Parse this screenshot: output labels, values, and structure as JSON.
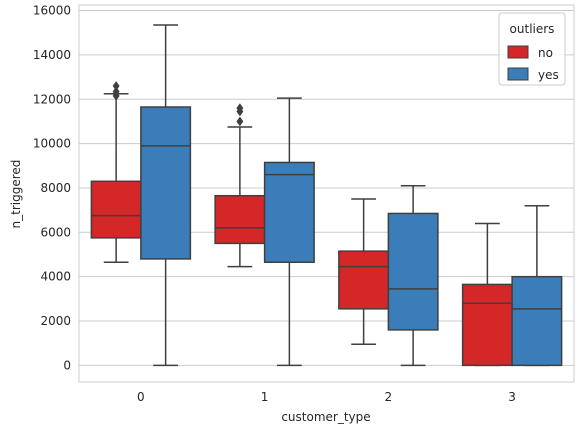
{
  "chart_data": {
    "type": "boxplot",
    "xlabel": "customer_type",
    "ylabel": "n_triggered",
    "categories": [
      "0",
      "1",
      "2",
      "3"
    ],
    "ylim": [
      -750,
      16250
    ],
    "yticks": [
      0,
      2000,
      4000,
      6000,
      8000,
      10000,
      12000,
      14000,
      16000
    ],
    "grid": "horizontal",
    "legend": {
      "title": "outliers",
      "placement": "top-right"
    },
    "series": [
      {
        "name": "no",
        "color": "#d62728",
        "boxes": [
          {
            "category": "0",
            "whisker_low": 4650,
            "q1": 5750,
            "median": 6750,
            "q3": 8300,
            "whisker_high": 12250,
            "fliers": [
              12150,
              12350,
              12600
            ]
          },
          {
            "category": "1",
            "whisker_low": 4450,
            "q1": 5500,
            "median": 6200,
            "q3": 7650,
            "whisker_high": 10750,
            "fliers": [
              11000,
              11450,
              11600
            ]
          },
          {
            "category": "2",
            "whisker_low": 950,
            "q1": 2550,
            "median": 4450,
            "q3": 5150,
            "whisker_high": 7500,
            "fliers": []
          },
          {
            "category": "3",
            "whisker_low": 0,
            "q1": 0,
            "median": 2800,
            "q3": 3650,
            "whisker_high": 6400,
            "fliers": []
          }
        ]
      },
      {
        "name": "yes",
        "color": "#3a7db8",
        "boxes": [
          {
            "category": "0",
            "whisker_low": 0,
            "q1": 4800,
            "median": 9900,
            "q3": 11650,
            "whisker_high": 15350,
            "fliers": []
          },
          {
            "category": "1",
            "whisker_low": 0,
            "q1": 4650,
            "median": 8600,
            "q3": 9150,
            "whisker_high": 12050,
            "fliers": []
          },
          {
            "category": "2",
            "whisker_low": 0,
            "q1": 1600,
            "median": 3450,
            "q3": 6850,
            "whisker_high": 8100,
            "fliers": []
          },
          {
            "category": "3",
            "whisker_low": 0,
            "q1": 0,
            "median": 2550,
            "q3": 4000,
            "whisker_high": 7200,
            "fliers": []
          }
        ]
      }
    ]
  }
}
